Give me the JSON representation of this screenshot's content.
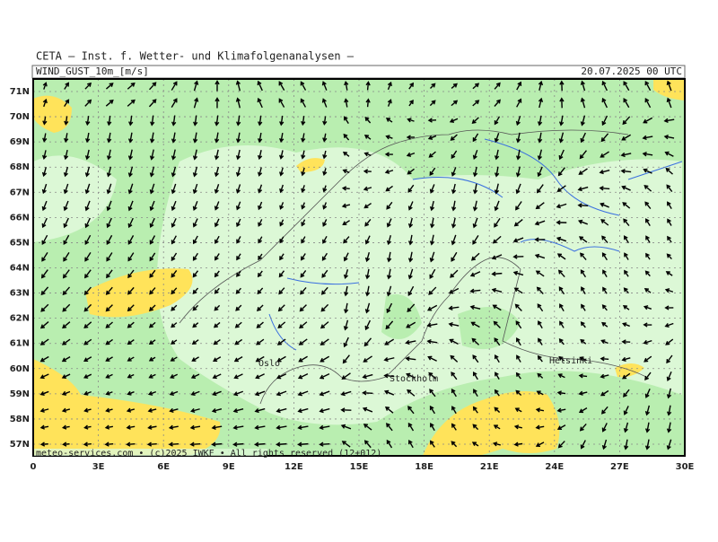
{
  "header": {
    "institute": "CETA — Inst. f. Wetter- und Klimafolgenanalysen —",
    "variable": "WIND_GUST_10m_[m/s]",
    "datetime": "20.07.2025 00 UTC"
  },
  "axes": {
    "latitude_labels": [
      "71N",
      "70N",
      "69N",
      "68N",
      "67N",
      "66N",
      "65N",
      "64N",
      "63N",
      "62N",
      "61N",
      "60N",
      "59N",
      "58N",
      "57N"
    ],
    "longitude_labels": [
      "0",
      "3E",
      "6E",
      "9E",
      "12E",
      "15E",
      "18E",
      "21E",
      "24E",
      "27E",
      "30E"
    ]
  },
  "places": [
    {
      "label": "Oslo"
    },
    {
      "label": "Stockholm"
    },
    {
      "label": "Helsinki"
    }
  ],
  "footer": "meteo-services.com • (c)2025 IWKF • All rights reserved (12+012)"
}
